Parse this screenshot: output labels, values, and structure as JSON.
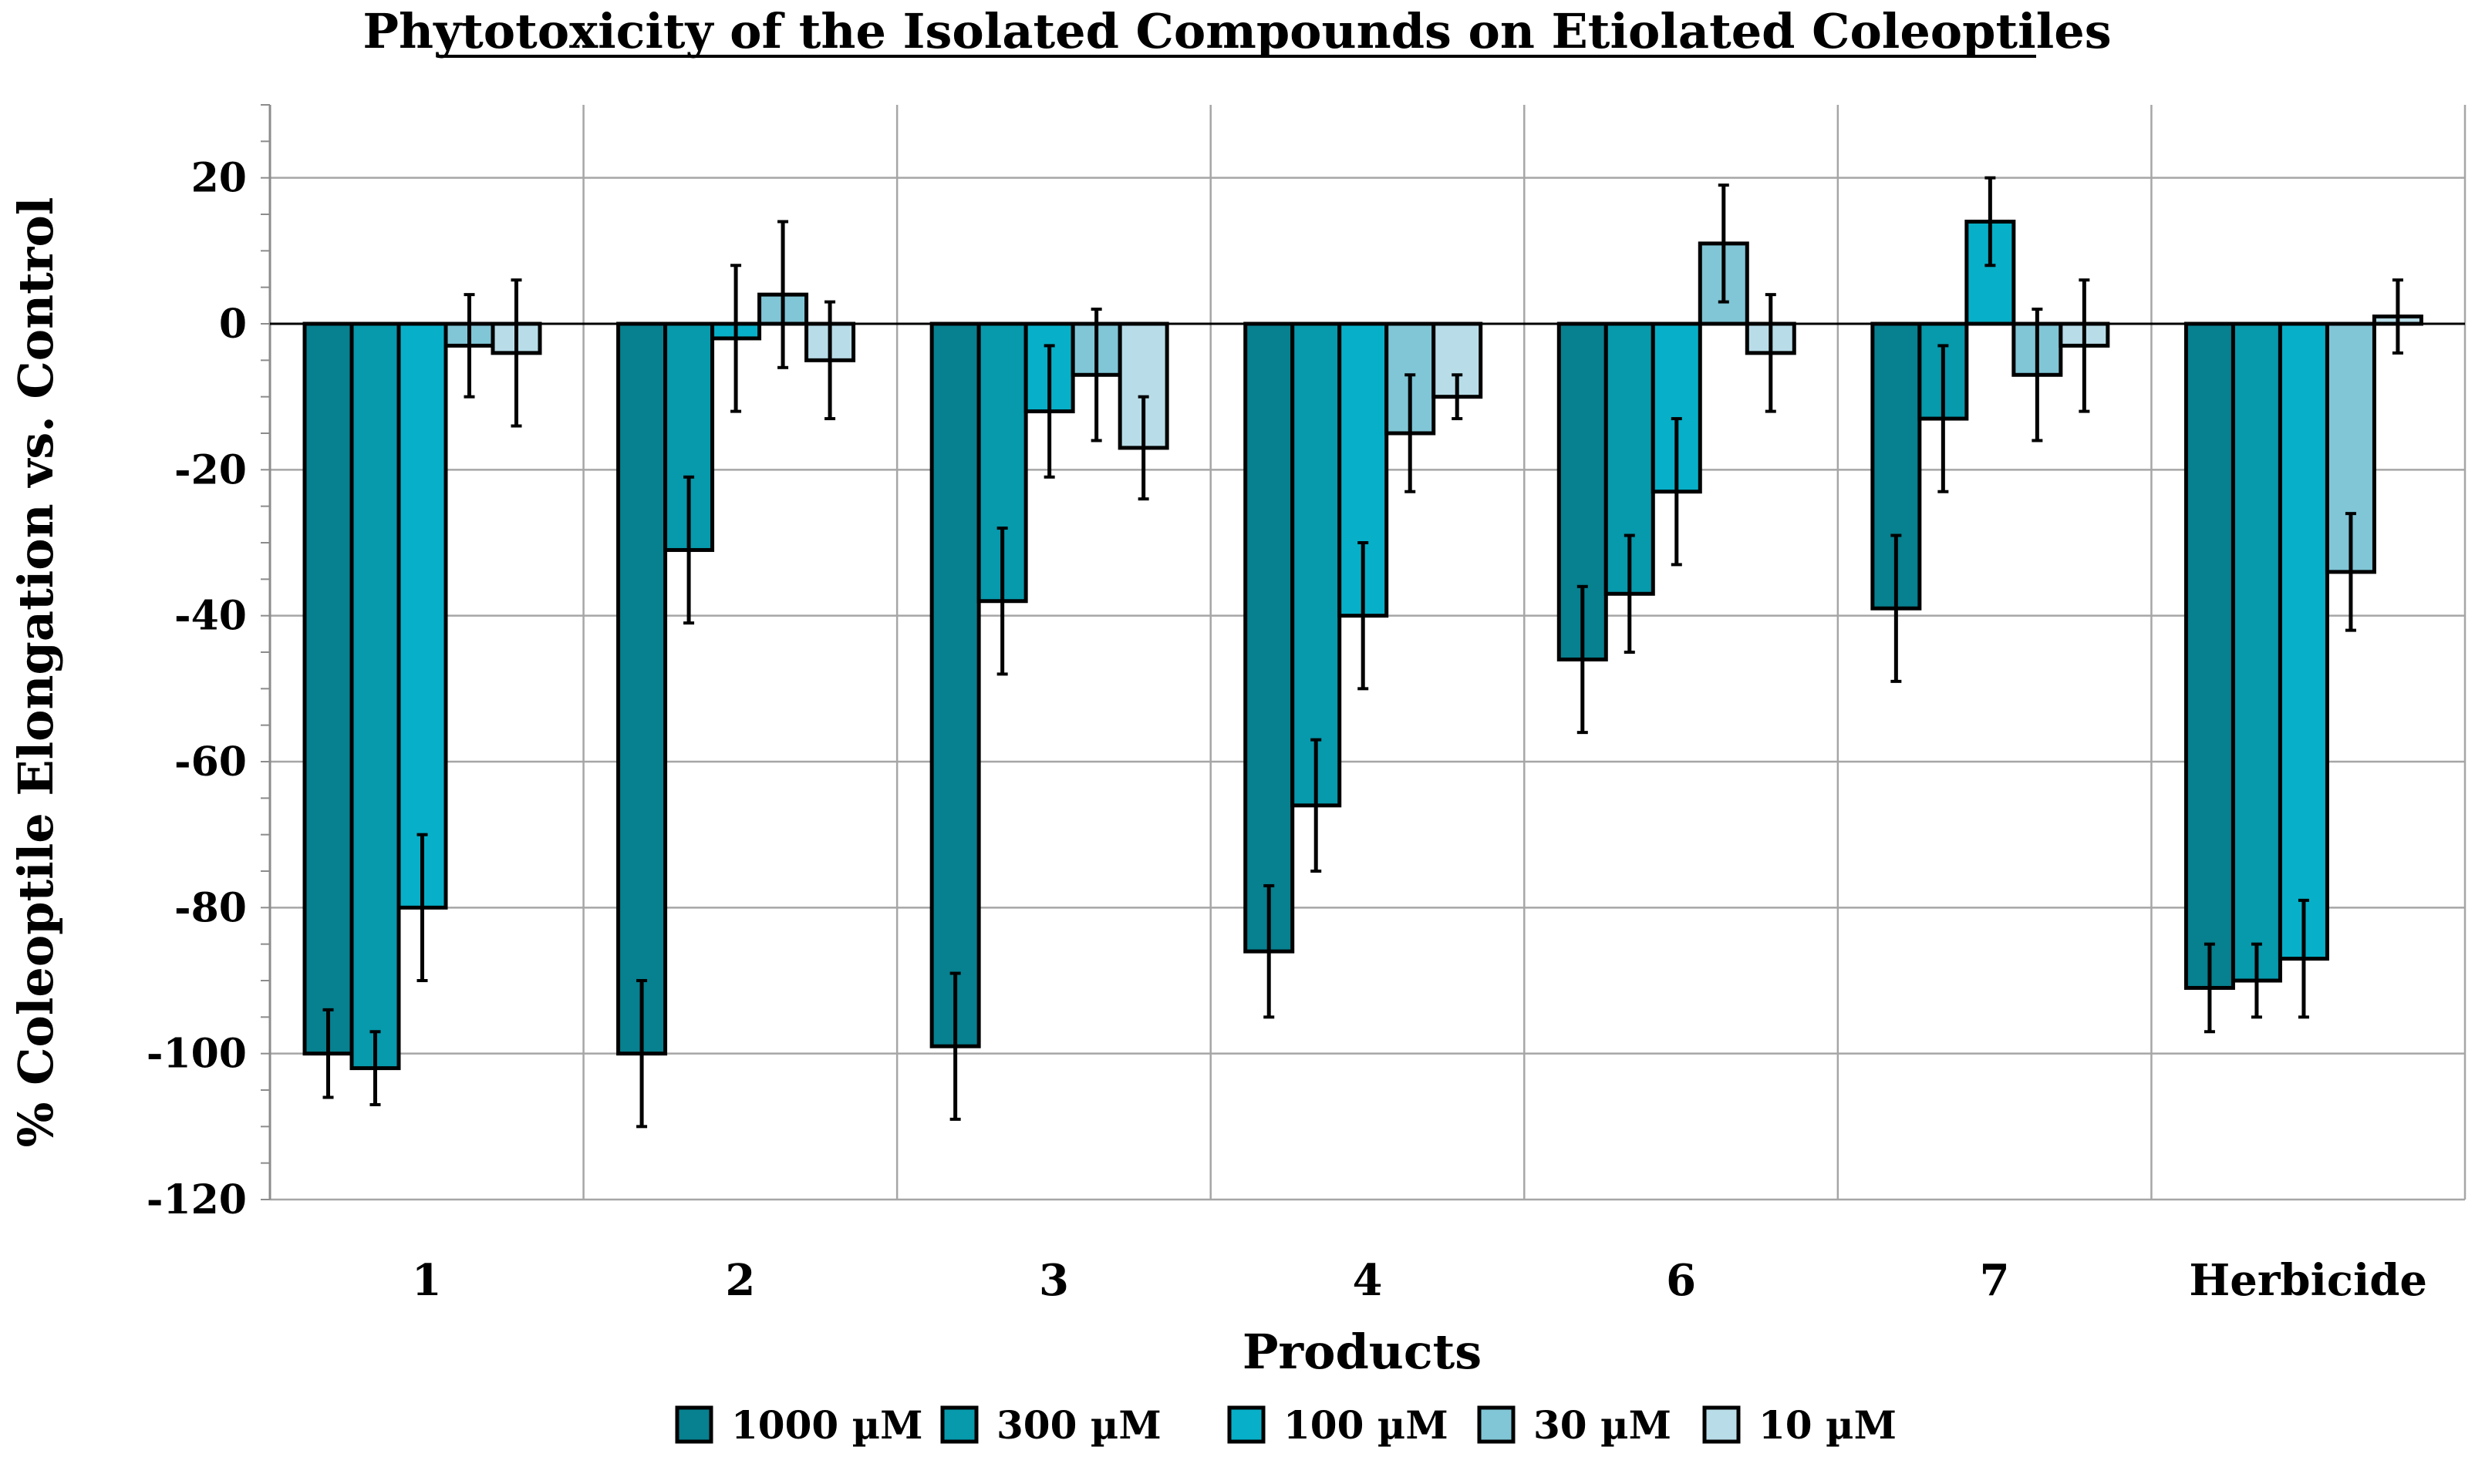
{
  "chart_data": {
    "type": "bar",
    "title": "Phytotoxicity of the Isolated Compounds on Etiolated Coleoptiles",
    "xlabel": "Products",
    "ylabel": "% Coleoptile Elongation vs. Control",
    "ylim": [
      -120,
      30
    ],
    "yticks": [
      20,
      0,
      -20,
      -40,
      -60,
      -80,
      -100,
      -120
    ],
    "grid": true,
    "legend_position": "bottom",
    "categories": [
      "1",
      "2",
      "3",
      "4",
      "6",
      "7",
      "Herbicide"
    ],
    "series": [
      {
        "name": "1000 µM",
        "color": "#07808f",
        "values": [
          -100,
          -100,
          -99,
          -86,
          -46,
          -39,
          -91
        ],
        "errors": [
          6,
          10,
          10,
          9,
          10,
          10,
          6
        ]
      },
      {
        "name": "300 µM",
        "color": "#0799ac",
        "values": [
          -102,
          -31,
          -38,
          -66,
          -37,
          -13,
          -90
        ],
        "errors": [
          5,
          10,
          10,
          9,
          8,
          10,
          5
        ]
      },
      {
        "name": "100 µM",
        "color": "#07b0c8",
        "values": [
          -80,
          -2,
          -12,
          -40,
          -23,
          14,
          -87
        ],
        "errors": [
          10,
          10,
          9,
          10,
          10,
          6,
          8
        ]
      },
      {
        "name": "30 µM",
        "color": "#80c6d6",
        "values": [
          -3,
          4,
          -7,
          -15,
          11,
          -7,
          -34
        ],
        "errors": [
          7,
          10,
          9,
          8,
          8,
          9,
          8
        ]
      },
      {
        "name": "10 µM",
        "color": "#b8dde8",
        "values": [
          -4,
          -5,
          -17,
          -10,
          -4,
          -3,
          1
        ],
        "errors": [
          10,
          8,
          7,
          3,
          8,
          9,
          5
        ]
      }
    ]
  }
}
